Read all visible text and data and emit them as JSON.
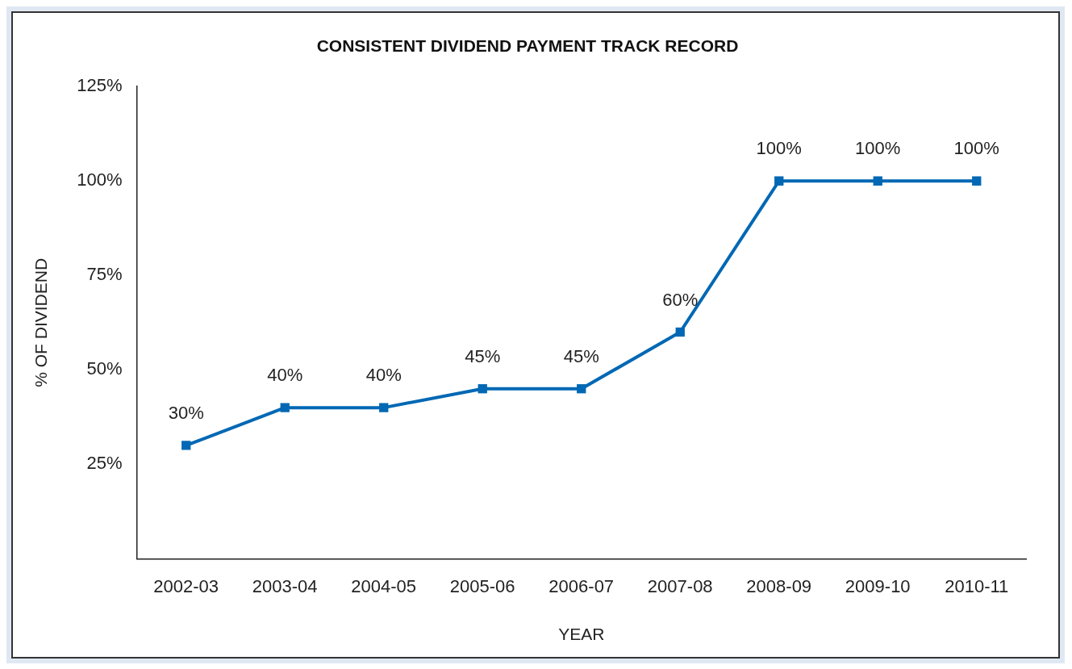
{
  "chart_data": {
    "type": "line",
    "title": "CONSISTENT DIVIDEND PAYMENT TRACK RECORD",
    "xlabel": "YEAR",
    "ylabel": "% OF DIVIDEND",
    "categories": [
      "2002-03",
      "2003-04",
      "2004-05",
      "2005-06",
      "2006-07",
      "2007-08",
      "2008-09",
      "2009-10",
      "2010-11"
    ],
    "series": [
      {
        "color": "#0068b4",
        "values": [
          30,
          40,
          40,
          45,
          45,
          60,
          100,
          100,
          100
        ],
        "value_labels": [
          "30%",
          "40%",
          "40%",
          "45%",
          "45%",
          "60%",
          "100%",
          "100%",
          "100%"
        ]
      }
    ],
    "ylim": [
      0,
      125
    ],
    "yticks": [
      {
        "value": 25,
        "label": "25%"
      },
      {
        "value": 50,
        "label": "50%"
      },
      {
        "value": 75,
        "label": "75%"
      },
      {
        "value": 100,
        "label": "100%"
      },
      {
        "value": 125,
        "label": "125%"
      }
    ],
    "grid": false,
    "legend": false,
    "marker": "square",
    "line_style": "solid"
  }
}
